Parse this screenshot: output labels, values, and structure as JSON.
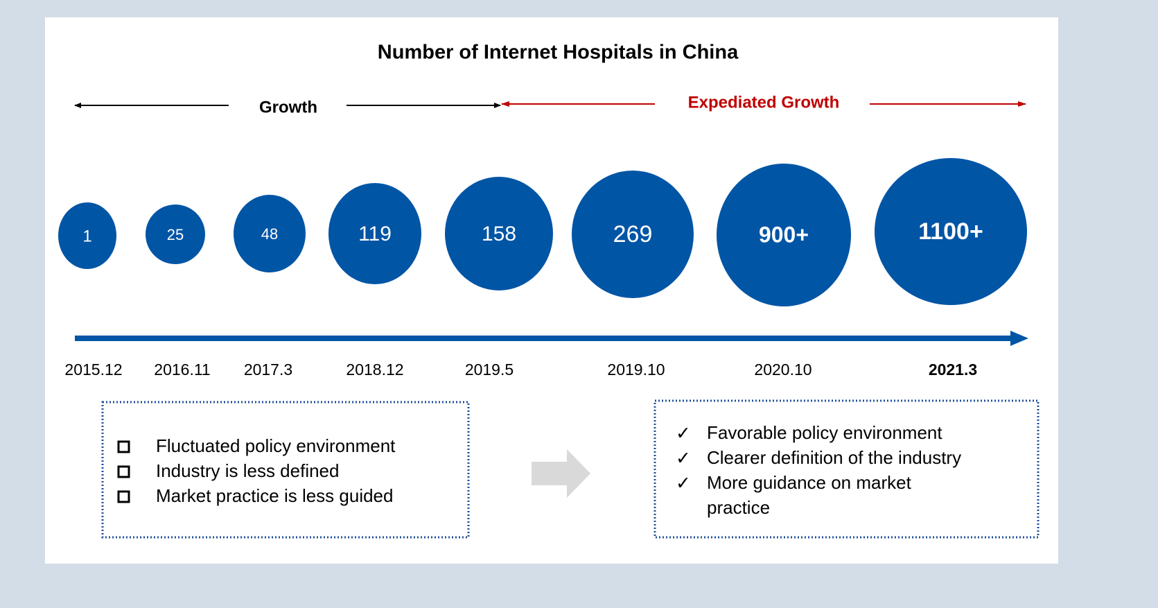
{
  "title": "Number of Internet Hospitals in China",
  "phases": [
    {
      "label": "Growth"
    },
    {
      "label": "Expediated Growth"
    }
  ],
  "milestones": [
    {
      "count": "1",
      "date": "2015.12"
    },
    {
      "count": "25",
      "date": "2016.11"
    },
    {
      "count": "48",
      "date": "2017.3"
    },
    {
      "count": "119",
      "date": "2018.12"
    },
    {
      "count": "158",
      "date": "2019.5"
    },
    {
      "count": "269",
      "date": "2019.10"
    },
    {
      "count": "900+",
      "date": "2020.10"
    },
    {
      "count": "1100+",
      "date": "2021.3"
    }
  ],
  "before": {
    "items": [
      "Fluctuated policy environment",
      "Industry is less defined",
      "Market practice is less guided"
    ]
  },
  "after": {
    "items": [
      [
        "Favorable policy environment"
      ],
      [
        "Clearer definition of the industry"
      ],
      [
        "More guidance on market",
        "practice"
      ]
    ]
  }
}
